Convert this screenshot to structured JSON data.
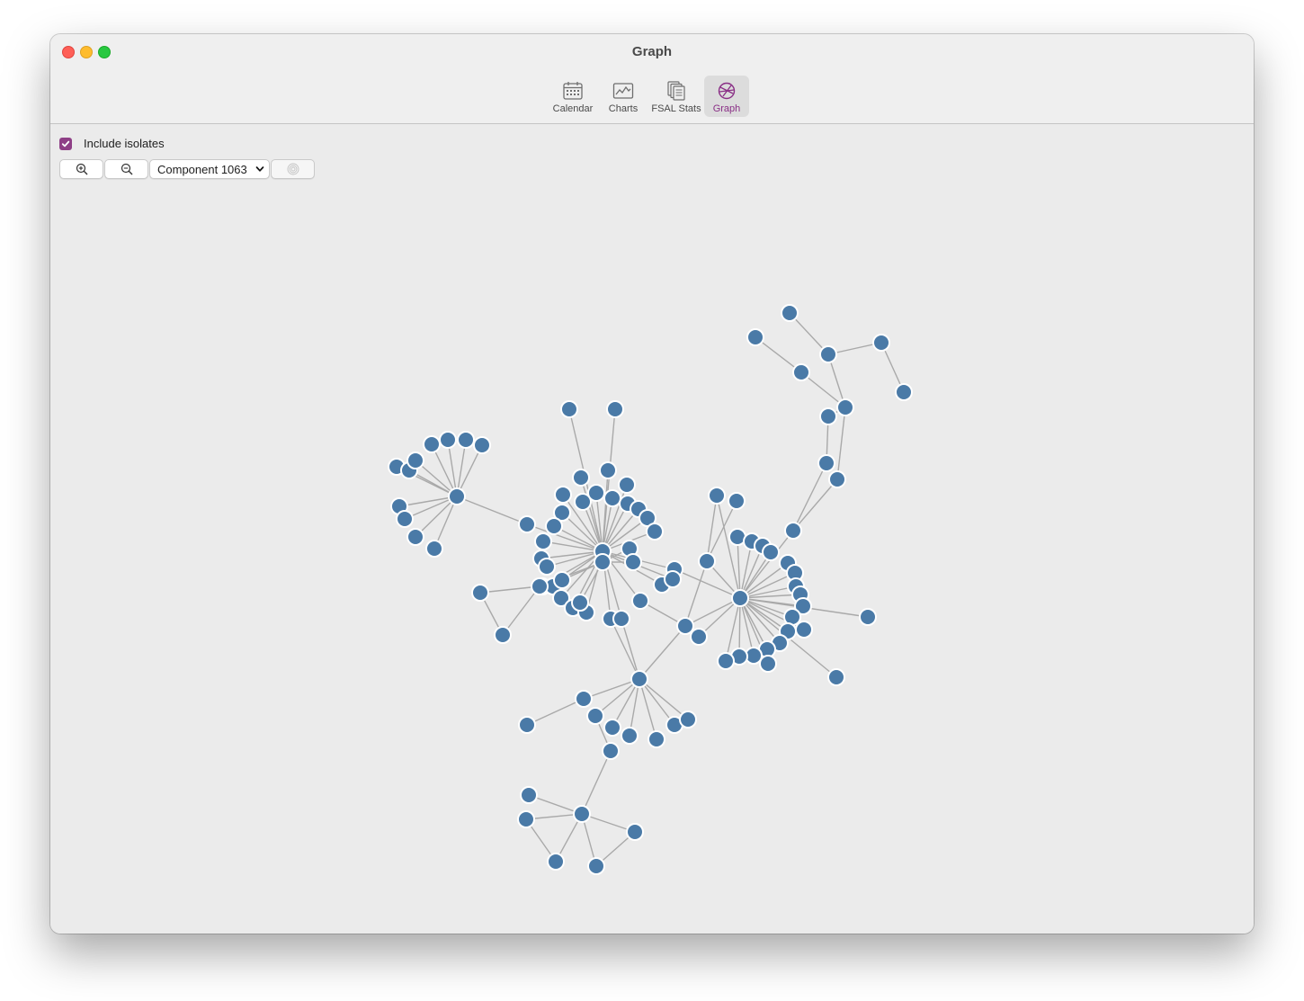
{
  "window": {
    "title": "Graph"
  },
  "toolbar": {
    "items": [
      {
        "label": "Calendar",
        "icon": "calendar-icon",
        "active": false
      },
      {
        "label": "Charts",
        "icon": "chart-icon",
        "active": false
      },
      {
        "label": "FSAL Stats",
        "icon": "documents-icon",
        "active": false
      },
      {
        "label": "Graph",
        "icon": "graph-icon",
        "active": true
      }
    ]
  },
  "graph_controls": {
    "include_isolates_label": "Include isolates",
    "include_isolates_checked": true,
    "zoom_in_icon": "zoom-in-icon",
    "zoom_out_icon": "zoom-out-icon",
    "component_selected": "Component 1063",
    "recenter_icon": "target-icon"
  },
  "colors": {
    "accent": "#8e3f86",
    "node_fill": "#4a7aa7",
    "node_stroke": "#ffffff",
    "edge": "#a9a9a9"
  }
}
